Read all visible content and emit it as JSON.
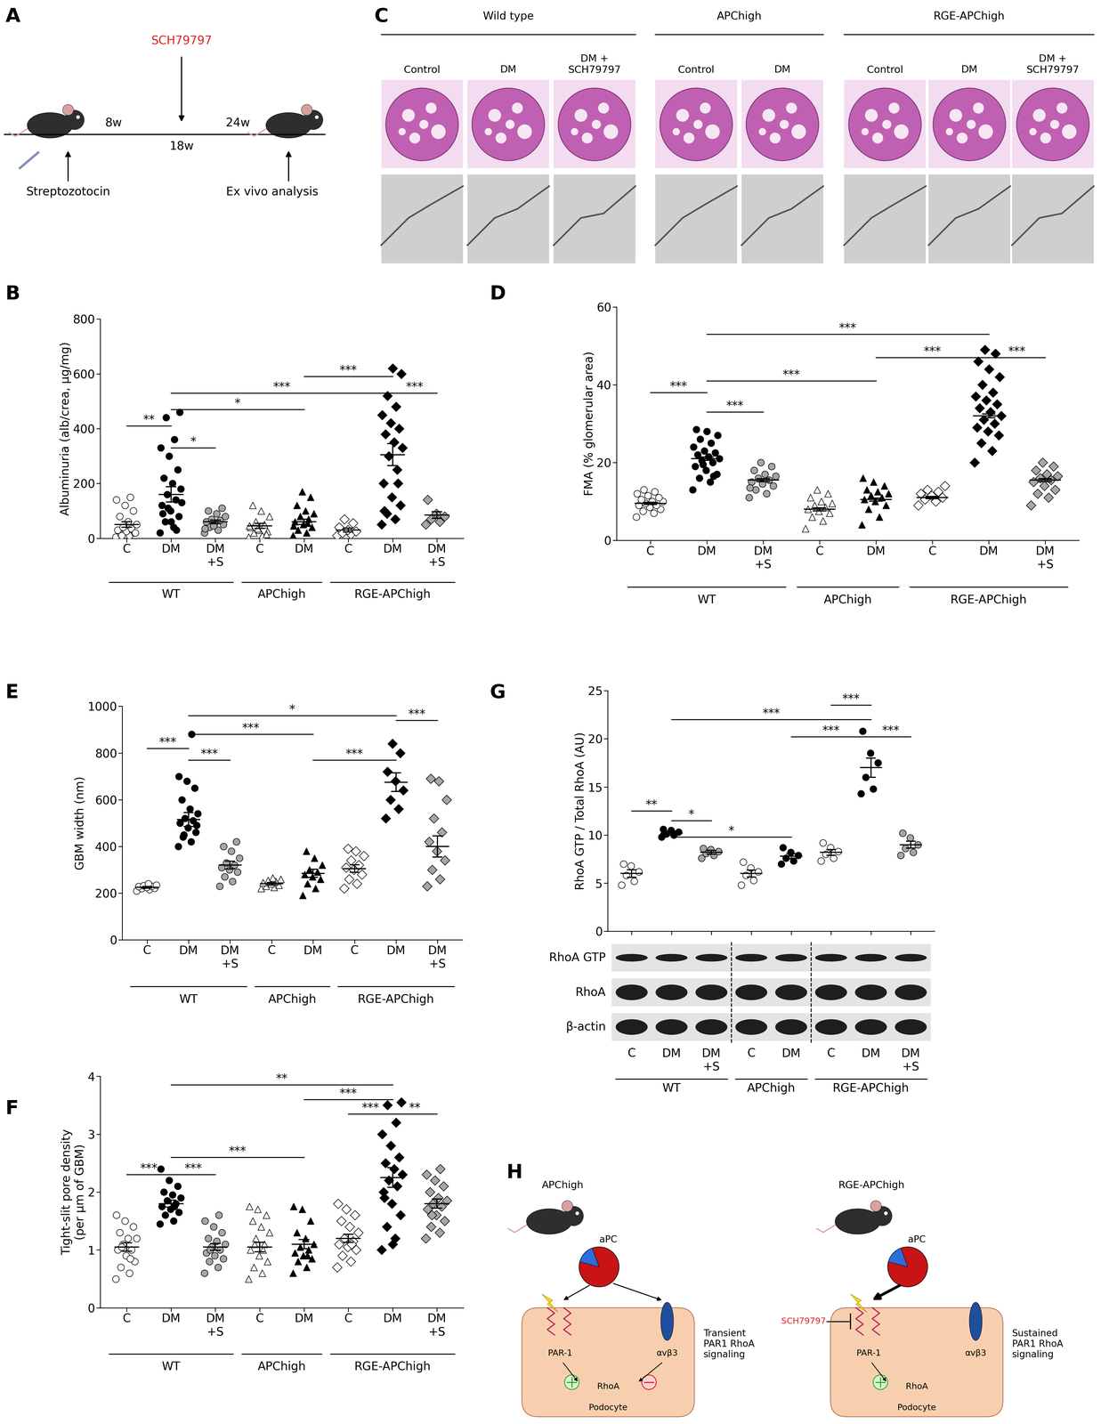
{
  "panel_labels": [
    "A",
    "B",
    "C",
    "D",
    "E",
    "F",
    "G",
    "H"
  ],
  "panel_A": {
    "drug": "SCH79797",
    "timepoints": [
      "8w",
      "18w",
      "24w"
    ],
    "start": "Streptozotocin",
    "end": "Ex vivo analysis"
  },
  "panel_C": {
    "genotypes": [
      {
        "label": "Wild type",
        "conditions": [
          "Control",
          "DM",
          "DM +\nSCH79797"
        ]
      },
      {
        "label": "APChigh",
        "conditions": [
          "Control",
          "DM"
        ]
      },
      {
        "label": "RGE-APChigh",
        "conditions": [
          "Control",
          "DM",
          "DM +\nSCH79797"
        ]
      }
    ]
  },
  "chart_data": [
    {
      "type": "scatter",
      "ylabel": "Albuminuria (alb/crea, µg/mg)",
      "categories": [
        "C",
        "DM",
        "DM\n+S",
        "C",
        "DM",
        "C",
        "DM",
        "DM\n+S"
      ],
      "groups": [
        {
          "label": "WT",
          "span": [
            0,
            2
          ]
        },
        {
          "label": "APChigh",
          "span": [
            3,
            4
          ]
        },
        {
          "label": "RGE-APChigh",
          "span": [
            5,
            7
          ]
        }
      ],
      "values": [
        [
          5,
          10,
          15,
          20,
          25,
          30,
          35,
          40,
          50,
          60,
          80,
          100,
          120,
          140,
          150,
          10,
          20
        ],
        [
          20,
          40,
          60,
          80,
          100,
          120,
          140,
          160,
          180,
          200,
          220,
          250,
          300,
          330,
          360,
          440,
          460,
          60,
          90,
          30,
          110,
          130
        ],
        [
          20,
          30,
          40,
          50,
          55,
          60,
          65,
          70,
          80,
          90,
          100,
          110,
          45,
          35
        ],
        [
          5,
          10,
          20,
          25,
          30,
          40,
          50,
          60,
          80,
          100,
          120,
          15,
          35,
          45
        ],
        [
          10,
          20,
          30,
          40,
          50,
          60,
          70,
          80,
          90,
          100,
          120,
          150,
          170,
          45,
          55
        ],
        [
          10,
          15,
          20,
          25,
          30,
          40,
          55,
          70
        ],
        [
          50,
          70,
          90,
          120,
          150,
          200,
          250,
          300,
          330,
          350,
          380,
          400,
          420,
          450,
          480,
          520,
          600,
          620,
          100,
          200
        ],
        [
          50,
          60,
          70,
          80,
          90,
          140
        ]
      ],
      "means": [
        50,
        160,
        60,
        45,
        60,
        30,
        305,
        85
      ],
      "sem": [
        10,
        28,
        7,
        9,
        10,
        7,
        40,
        12
      ],
      "colors": [
        "#ffffff",
        "#000000",
        "#a6a6a6",
        "#ffffff",
        "#000000",
        "#ffffff",
        "#000000",
        "#a6a6a6"
      ],
      "markers": [
        "circle",
        "circle",
        "circle",
        "triangle",
        "triangle",
        "diamond",
        "diamond",
        "diamond"
      ],
      "ylim": [
        0,
        800
      ],
      "yticks": [
        0,
        200,
        400,
        600,
        800
      ],
      "brackets": [
        {
          "from": 0,
          "to": 1,
          "y": 410,
          "label": "**"
        },
        {
          "from": 1,
          "to": 2,
          "y": 330,
          "label": "*"
        },
        {
          "from": 1,
          "to": 4,
          "y": 470,
          "label": "*"
        },
        {
          "from": 1,
          "to": 6,
          "y": 530,
          "label": "***"
        },
        {
          "from": 4,
          "to": 6,
          "y": 590,
          "label": "***"
        },
        {
          "from": 6,
          "to": 7,
          "y": 530,
          "label": "***"
        }
      ]
    },
    {
      "type": "scatter",
      "ylabel": "FMA (% glomerular area)",
      "categories": [
        "C",
        "DM",
        "DM\n+S",
        "C",
        "DM",
        "C",
        "DM",
        "DM\n+S"
      ],
      "groups": [
        {
          "label": "WT",
          "span": [
            0,
            2
          ]
        },
        {
          "label": "APChigh",
          "span": [
            3,
            4
          ]
        },
        {
          "label": "RGE-APChigh",
          "span": [
            5,
            7
          ]
        }
      ],
      "values": [
        [
          6,
          7,
          7.5,
          8,
          8.5,
          9,
          9,
          9.5,
          10,
          10,
          10.5,
          11,
          11.5,
          12,
          12.5,
          13
        ],
        [
          13,
          15,
          16,
          17,
          18,
          19,
          20,
          20.5,
          21,
          21.5,
          22,
          22.5,
          23,
          24,
          25,
          26,
          27,
          28,
          28.5,
          16.5,
          19.5
        ],
        [
          11,
          12,
          13,
          14,
          14.5,
          15,
          15.5,
          16,
          16.5,
          17,
          18,
          19,
          20,
          13.5
        ],
        [
          3,
          5,
          6,
          7,
          7.5,
          8,
          8.5,
          9,
          9.5,
          10,
          11,
          12,
          13
        ],
        [
          4,
          6,
          8,
          9,
          10,
          10.5,
          11,
          11.5,
          12,
          12.5,
          13,
          14,
          15,
          16
        ],
        [
          9,
          10,
          10.5,
          11,
          11.5,
          12,
          12.5,
          13,
          14
        ],
        [
          20,
          23,
          25,
          27,
          28,
          29,
          30,
          31,
          32,
          33,
          34,
          35,
          36,
          37,
          38,
          40,
          42,
          44,
          46,
          48,
          49
        ],
        [
          9,
          11,
          12,
          13,
          14,
          15,
          15.5,
          16,
          16.5,
          17,
          18,
          19,
          20
        ]
      ],
      "means": [
        9.5,
        21,
        15.5,
        8,
        10.5,
        11,
        32,
        15.5
      ],
      "sem": [
        0.3,
        0.4,
        0.4,
        0.4,
        0.4,
        0.3,
        0.5,
        0.4
      ],
      "colors": [
        "#ffffff",
        "#000000",
        "#a6a6a6",
        "#ffffff",
        "#000000",
        "#ffffff",
        "#000000",
        "#a6a6a6"
      ],
      "markers": [
        "circle",
        "circle",
        "circle",
        "triangle",
        "triangle",
        "diamond",
        "diamond",
        "diamond"
      ],
      "ylim": [
        0,
        60
      ],
      "yticks": [
        0,
        20,
        40,
        60
      ],
      "brackets": [
        {
          "from": 0,
          "to": 1,
          "y": 38,
          "label": "***"
        },
        {
          "from": 1,
          "to": 2,
          "y": 33,
          "label": "***"
        },
        {
          "from": 1,
          "to": 4,
          "y": 41,
          "label": "***"
        },
        {
          "from": 1,
          "to": 6,
          "y": 53,
          "label": "***"
        },
        {
          "from": 4,
          "to": 6,
          "y": 47,
          "label": "***"
        },
        {
          "from": 6,
          "to": 7,
          "y": 47,
          "label": "***"
        }
      ]
    },
    {
      "type": "scatter",
      "ylabel": "GBM width (nm)",
      "categories": [
        "C",
        "DM",
        "DM\n+S",
        "C",
        "DM",
        "C",
        "DM",
        "DM\n+S"
      ],
      "groups": [
        {
          "label": "WT",
          "span": [
            0,
            2
          ]
        },
        {
          "label": "APChigh",
          "span": [
            3,
            4
          ]
        },
        {
          "label": "RGE-APChigh",
          "span": [
            5,
            7
          ]
        }
      ],
      "values": [
        [
          210,
          215,
          220,
          222,
          225,
          228,
          230,
          232,
          235,
          240
        ],
        [
          400,
          420,
          440,
          460,
          480,
          500,
          510,
          520,
          540,
          560,
          600,
          650,
          680,
          700,
          880,
          450,
          490
        ],
        [
          230,
          250,
          270,
          290,
          300,
          310,
          320,
          330,
          350,
          380,
          400,
          420
        ],
        [
          220,
          225,
          230,
          235,
          240,
          245,
          250,
          255,
          260,
          265
        ],
        [
          190,
          220,
          240,
          260,
          270,
          280,
          290,
          300,
          320,
          350,
          380
        ],
        [
          220,
          240,
          260,
          280,
          300,
          310,
          320,
          340,
          360,
          380,
          390
        ],
        [
          520,
          560,
          600,
          640,
          680,
          720,
          800,
          840
        ],
        [
          230,
          260,
          300,
          340,
          380,
          420,
          460,
          520,
          600,
          680,
          690
        ]
      ],
      "means": [
        225,
        515,
        320,
        240,
        285,
        305,
        675,
        400
      ],
      "sem": [
        3,
        30,
        17,
        5,
        17,
        16,
        40,
        45
      ],
      "colors": [
        "#ffffff",
        "#000000",
        "#a6a6a6",
        "#ffffff",
        "#000000",
        "#ffffff",
        "#000000",
        "#a6a6a6"
      ],
      "markers": [
        "circle",
        "circle",
        "circle",
        "triangle",
        "triangle",
        "diamond",
        "diamond",
        "diamond"
      ],
      "ylim": [
        0,
        1000
      ],
      "yticks": [
        0,
        200,
        400,
        600,
        800,
        1000
      ],
      "brackets": [
        {
          "from": 0,
          "to": 1,
          "y": 820,
          "label": "***"
        },
        {
          "from": 1,
          "to": 2,
          "y": 770,
          "label": "***"
        },
        {
          "from": 1,
          "to": 4,
          "y": 880,
          "label": "***"
        },
        {
          "from": 1,
          "to": 6,
          "y": 960,
          "label": "*"
        },
        {
          "from": 4,
          "to": 6,
          "y": 770,
          "label": "***"
        },
        {
          "from": 6,
          "to": 7,
          "y": 940,
          "label": "***"
        }
      ]
    },
    {
      "type": "scatter",
      "ylabel": "Tight-slit pore density\n(per µm of GBM)",
      "categories": [
        "C",
        "DM",
        "DM\n+S",
        "C",
        "DM",
        "C",
        "DM",
        "DM\n+S"
      ],
      "groups": [
        {
          "label": "WT",
          "span": [
            0,
            2
          ]
        },
        {
          "label": "APChigh",
          "span": [
            3,
            4
          ]
        },
        {
          "label": "RGE-APChigh",
          "span": [
            5,
            7
          ]
        }
      ],
      "values": [
        [
          0.5,
          0.6,
          0.7,
          0.8,
          0.9,
          1.0,
          1.0,
          1.1,
          1.2,
          1.2,
          1.3,
          1.4,
          1.5,
          1.6,
          0.85,
          1.05
        ],
        [
          1.45,
          1.5,
          1.6,
          1.65,
          1.7,
          1.75,
          1.8,
          1.85,
          1.9,
          1.95,
          2.0,
          2.1,
          2.2,
          2.4,
          1.75
        ],
        [
          0.6,
          0.7,
          0.8,
          0.85,
          0.9,
          0.95,
          1.0,
          1.05,
          1.1,
          1.15,
          1.2,
          1.3,
          1.4,
          1.5,
          1.6,
          1.0
        ],
        [
          0.5,
          0.6,
          0.7,
          0.8,
          0.9,
          1.0,
          1.1,
          1.2,
          1.3,
          1.4,
          1.5,
          1.6,
          1.7,
          1.75,
          1.0,
          1.1
        ],
        [
          0.6,
          0.7,
          0.8,
          0.85,
          0.9,
          0.95,
          1.0,
          1.05,
          1.1,
          1.2,
          1.3,
          1.5,
          1.7,
          1.75,
          0.9
        ],
        [
          0.7,
          0.8,
          0.9,
          1.0,
          1.05,
          1.1,
          1.15,
          1.2,
          1.3,
          1.4,
          1.5,
          1.6,
          1.7,
          1.8,
          1.1
        ],
        [
          1.0,
          1.2,
          1.4,
          1.6,
          1.8,
          2.0,
          2.1,
          2.2,
          2.3,
          2.4,
          2.5,
          2.6,
          2.8,
          3.0,
          3.2,
          3.5,
          3.55,
          1.1,
          1.9
        ],
        [
          1.2,
          1.3,
          1.4,
          1.5,
          1.6,
          1.7,
          1.75,
          1.8,
          1.85,
          1.9,
          2.0,
          2.1,
          2.2,
          2.3,
          2.4,
          1.6
        ]
      ],
      "means": [
        1.05,
        1.8,
        1.05,
        1.05,
        1.1,
        1.2,
        2.25,
        1.8
      ],
      "sem": [
        0.07,
        0.06,
        0.06,
        0.08,
        0.08,
        0.07,
        0.17,
        0.08
      ],
      "colors": [
        "#ffffff",
        "#000000",
        "#a6a6a6",
        "#ffffff",
        "#000000",
        "#ffffff",
        "#000000",
        "#a6a6a6"
      ],
      "markers": [
        "circle",
        "circle",
        "circle",
        "triangle",
        "triangle",
        "diamond",
        "diamond",
        "diamond"
      ],
      "ylim": [
        0,
        4
      ],
      "yticks": [
        0,
        1,
        2,
        3,
        4
      ],
      "brackets": [
        {
          "from": 0,
          "to": 1,
          "y": 2.3,
          "label": "***"
        },
        {
          "from": 1,
          "to": 2,
          "y": 2.3,
          "label": "***"
        },
        {
          "from": 1,
          "to": 4,
          "y": 2.6,
          "label": "***"
        },
        {
          "from": 1,
          "to": 6,
          "y": 3.85,
          "label": "**"
        },
        {
          "from": 4,
          "to": 6,
          "y": 3.6,
          "label": "***"
        },
        {
          "from": 5,
          "to": 6,
          "y": 3.35,
          "label": "***"
        },
        {
          "from": 6,
          "to": 7,
          "y": 3.35,
          "label": "**"
        }
      ]
    },
    {
      "type": "scatter",
      "ylabel": "RhoA GTP / Total RhoA (AU)",
      "tick_labels": "y",
      "categories": [
        "C",
        "DM",
        "DM\n+S",
        "C",
        "DM",
        "C",
        "DM",
        "DM\n+S"
      ],
      "groups": [
        {
          "label": "WT",
          "span": [
            0,
            2
          ]
        },
        {
          "label": "APChigh",
          "span": [
            3,
            4
          ]
        },
        {
          "label": "RGE-APChigh",
          "span": [
            5,
            7
          ]
        }
      ],
      "values": [
        [
          4.8,
          5.2,
          5.8,
          6.2,
          6.8,
          7.0
        ],
        [
          9.8,
          10.0,
          10.1,
          10.3,
          10.5,
          10.6
        ],
        [
          7.6,
          7.9,
          8.1,
          8.3,
          8.5,
          8.6
        ],
        [
          4.8,
          5.3,
          5.8,
          6.2,
          6.6,
          7.2
        ],
        [
          7.0,
          7.3,
          7.6,
          7.9,
          8.2,
          8.7
        ],
        [
          7.3,
          7.6,
          8.0,
          8.3,
          8.7,
          9.2
        ],
        [
          14.3,
          14.8,
          16,
          17.5,
          18.5,
          20.8
        ],
        [
          7.9,
          8.2,
          8.6,
          9.0,
          9.7,
          10.2
        ]
      ],
      "means": [
        6,
        10.2,
        8.2,
        6,
        7.8,
        8.2,
        17,
        9
      ],
      "sem": [
        0.4,
        0.2,
        0.2,
        0.35,
        0.25,
        0.3,
        1.0,
        0.35
      ],
      "colors": [
        "#ffffff",
        "#000000",
        "#a6a6a6",
        "#ffffff",
        "#000000",
        "#ffffff",
        "#000000",
        "#a6a6a6"
      ],
      "markers": [
        "circle",
        "circle",
        "circle",
        "circle",
        "circle",
        "circle",
        "circle",
        "circle"
      ],
      "ylim": [
        0,
        25
      ],
      "yticks": [
        0,
        5,
        10,
        15,
        20,
        25
      ],
      "brackets": [
        {
          "from": 0,
          "to": 1,
          "y": 12.5,
          "label": "**"
        },
        {
          "from": 1,
          "to": 2,
          "y": 11.5,
          "label": "*"
        },
        {
          "from": 1,
          "to": 4,
          "y": 9.8,
          "label": "*"
        },
        {
          "from": 1,
          "to": 6,
          "y": 22,
          "label": "***"
        },
        {
          "from": 5,
          "to": 6,
          "y": 23.5,
          "label": "***"
        },
        {
          "from": 4,
          "to": 6,
          "y": 20.2,
          "label": "***"
        },
        {
          "from": 6,
          "to": 7,
          "y": 20.2,
          "label": "***"
        }
      ]
    }
  ],
  "panel_G_blot": {
    "rows": [
      "RhoA GTP",
      "RhoA",
      "β-actin"
    ]
  },
  "panel_H": {
    "left": {
      "mouse": "APChigh",
      "ligand": "aPC",
      "receptor": "PAR-1",
      "integrin": "αvβ3",
      "effector": "RhoA",
      "cell": "Podocyte",
      "outcome": "Transient\nPAR1 RhoA\nsignaling"
    },
    "right": {
      "mouse": "RGE-APChigh",
      "ligand": "aPC",
      "inhibitor": "SCH79797",
      "receptor": "PAR-1",
      "integrin": "αvβ3",
      "effector": "RhoA",
      "cell": "Podocyte",
      "outcome": "Sustained\nPAR1 RhoA\nsignaling"
    }
  }
}
